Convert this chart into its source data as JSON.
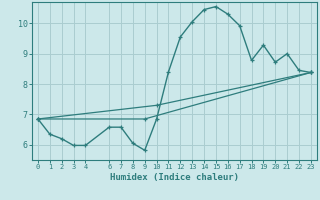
{
  "bg_color": "#cce8ea",
  "grid_color": "#aacdd0",
  "line_color": "#2e7d7d",
  "xlabel": "Humidex (Indice chaleur)",
  "xlim": [
    -0.5,
    23.5
  ],
  "ylim": [
    5.5,
    10.7
  ],
  "yticks": [
    6,
    7,
    8,
    9,
    10
  ],
  "xticks": [
    0,
    1,
    2,
    3,
    4,
    6,
    7,
    8,
    9,
    10,
    11,
    12,
    13,
    14,
    15,
    16,
    17,
    18,
    19,
    20,
    21,
    22,
    23
  ],
  "curve_x": [
    0,
    1,
    2,
    3,
    4,
    6,
    7,
    8,
    9,
    10,
    11,
    12,
    13,
    14,
    15,
    16,
    17,
    18,
    19,
    20,
    21,
    22,
    23
  ],
  "curve_y": [
    6.85,
    6.35,
    6.2,
    5.98,
    5.98,
    6.58,
    6.58,
    6.05,
    5.82,
    6.85,
    8.4,
    9.55,
    10.05,
    10.45,
    10.55,
    10.3,
    9.92,
    8.78,
    9.28,
    8.72,
    9.0,
    8.45,
    8.38
  ],
  "line2_x": [
    0,
    10,
    23
  ],
  "line2_y": [
    6.85,
    7.3,
    8.38
  ],
  "line3_x": [
    0,
    9,
    23
  ],
  "line3_y": [
    6.85,
    6.85,
    8.38
  ]
}
